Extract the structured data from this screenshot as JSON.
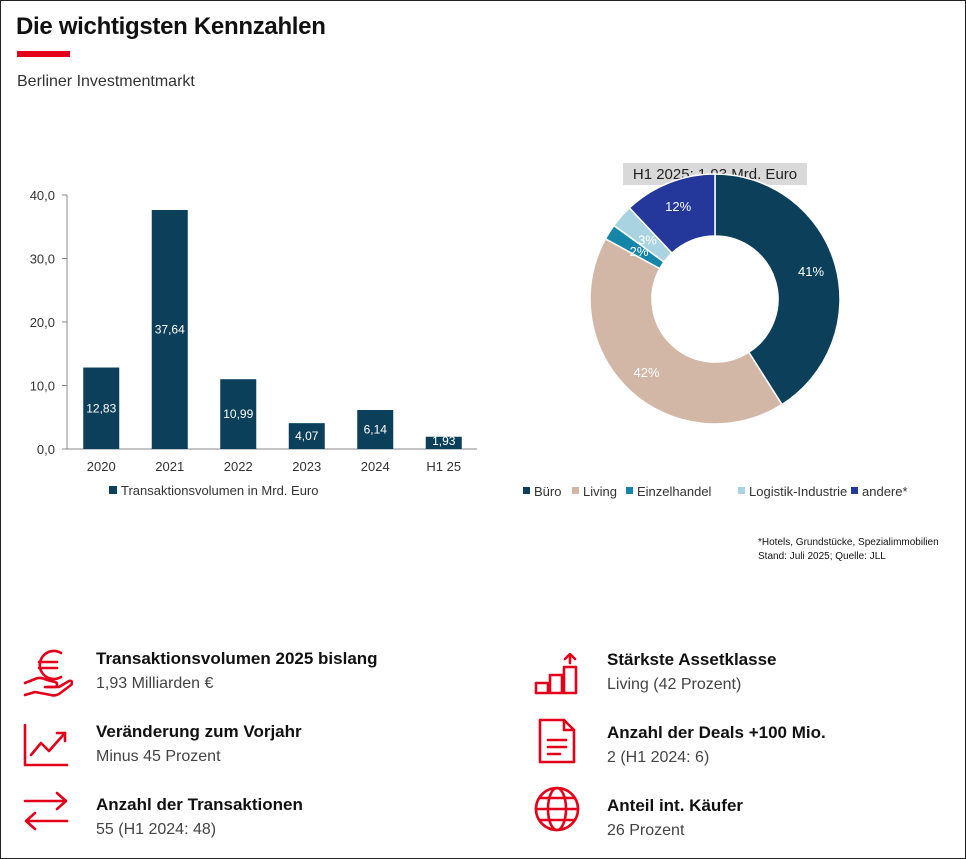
{
  "header": {
    "title": "Die wichtigsten Kennzahlen",
    "subtitle": "Berliner Investmentmarkt"
  },
  "colors": {
    "accent": "#e3001b",
    "bar": "#0b3f5a",
    "buero": "#0b3f5a",
    "living": "#d2b7a6",
    "einzelhandel": "#1686a8",
    "logistik": "#a9d3e0",
    "andere": "#23389a"
  },
  "chart_data": [
    {
      "type": "bar",
      "categories": [
        "2020",
        "2021",
        "2022",
        "2023",
        "2024",
        "H1 25"
      ],
      "series": [
        {
          "name": "Transaktionsvolumen in Mrd. Euro",
          "values": [
            12.83,
            37.64,
            10.99,
            4.07,
            6.14,
            1.93
          ]
        }
      ],
      "value_labels": [
        "12,83",
        "37,64",
        "10,99",
        "4,07",
        "6,14",
        "1,93"
      ],
      "ylim": [
        0,
        40
      ],
      "yticks": [
        "0,0",
        "10,0",
        "20,0",
        "30,0",
        "40,0"
      ],
      "legend_label": "Transaktionsvolumen in Mrd. Euro",
      "legend_position": "bottom",
      "grid": false
    },
    {
      "type": "pie",
      "title": "H1 2025: 1,93 Mrd. Euro",
      "slices": [
        {
          "name": "Büro",
          "value": 41,
          "label": "41%"
        },
        {
          "name": "Living",
          "value": 42,
          "label": "42%"
        },
        {
          "name": "Einzelhandel",
          "value": 2,
          "label": "2%"
        },
        {
          "name": "Logistik-Industrie",
          "value": 3,
          "label": "3%"
        },
        {
          "name": "andere*",
          "value": 12,
          "label": "12%"
        }
      ],
      "legend_position": "bottom"
    }
  ],
  "footnote": {
    "line1": "*Hotels, Grundstücke, Spezialimmobilien",
    "line2": "Stand: Juli 2025; Quelle: JLL"
  },
  "kpis": [
    {
      "icon": "euro-hand-icon",
      "title": "Transaktionsvolumen 2025 bislang",
      "value": "1,93 Milliarden  €"
    },
    {
      "icon": "trend-chart-icon",
      "title": "Veränderung zum Vorjahr",
      "value": "Minus 45 Prozent"
    },
    {
      "icon": "exchange-arrows-icon",
      "title": "Anzahl der Transaktionen",
      "value": "55 (H1 2024: 48)"
    },
    {
      "icon": "bar-growth-icon",
      "title": "Stärkste Assetklasse",
      "value": "Living (42 Prozent)"
    },
    {
      "icon": "document-icon",
      "title": "Anzahl der Deals +100 Mio.",
      "value": "2 (H1 2024: 6)"
    },
    {
      "icon": "globe-icon",
      "title": "Anteil int. Käufer",
      "value": "26 Prozent"
    }
  ]
}
